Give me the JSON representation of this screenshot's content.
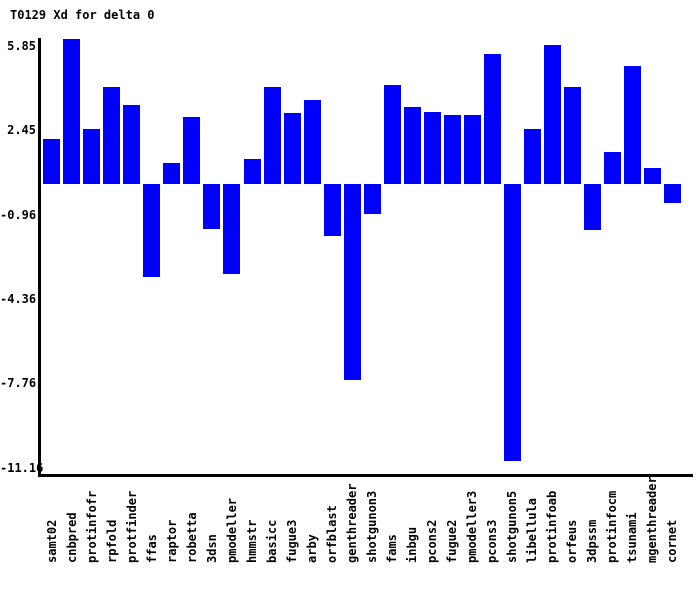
{
  "title": "T0129 Xd for delta 0",
  "chart_data": {
    "type": "bar",
    "title": "T0129 Xd for delta 0",
    "xlabel": "",
    "ylabel": "",
    "grid": false,
    "legend": "none",
    "bar_color": "#0000ff",
    "axis_color": "#000000",
    "background_color": "#ffffff",
    "ylim": [
      -11.7,
      5.9
    ],
    "baseline": 0,
    "y_ticks": [
      {
        "label": "5.85",
        "value": 5.85
      },
      {
        "label": "2.45",
        "value": 2.45
      },
      {
        "label": "-0.96",
        "value": -0.96
      },
      {
        "label": "-4.36",
        "value": -4.36
      },
      {
        "label": "-7.76",
        "value": -7.76
      },
      {
        "label": "-11.16",
        "value": -11.16
      }
    ],
    "categories": [
      "samt02",
      "cnbpred",
      "protinfofr",
      "rpfold",
      "protfinder",
      "ffas",
      "raptor",
      "robetta",
      "3dsn",
      "pmodeller",
      "hmmstr",
      "basicc",
      "fugue3",
      "arby",
      "orfblast",
      "genthreader",
      "shotgunon3",
      "fams",
      "inbgu",
      "pcons2",
      "fugue2",
      "pmodeller3",
      "pcons3",
      "shotgunon5",
      "libellula",
      "protinfoab",
      "orfeus",
      "3dpssm",
      "protinfocm",
      "tsunami",
      "mgenthreader",
      "cornet"
    ],
    "values": [
      1.8,
      5.85,
      2.2,
      3.9,
      3.2,
      -3.75,
      0.85,
      2.7,
      -1.8,
      -3.65,
      1.0,
      3.9,
      2.85,
      3.4,
      -2.1,
      -7.9,
      -1.2,
      4.0,
      3.1,
      2.9,
      2.8,
      2.8,
      5.25,
      -11.16,
      2.2,
      5.6,
      3.9,
      -1.85,
      1.3,
      4.75,
      0.65,
      -0.75
    ]
  }
}
